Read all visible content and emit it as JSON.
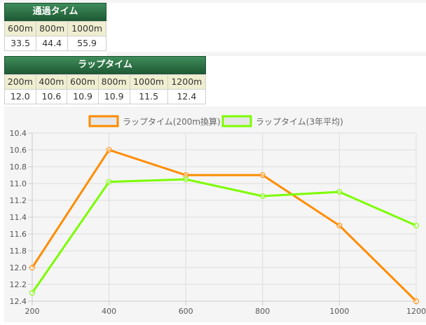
{
  "passing_table": {
    "title": "通過タイム",
    "headers": [
      "600m",
      "800m",
      "1000m"
    ],
    "values": [
      "33.5",
      "44.4",
      "55.9"
    ]
  },
  "lap_table": {
    "title": "ラップタイム",
    "headers": [
      "200m",
      "400m",
      "600m",
      "800m",
      "1000m",
      "1200m"
    ],
    "values": [
      "12.0",
      "10.6",
      "10.9",
      "10.9",
      "11.5",
      "12.4"
    ]
  },
  "colors": {
    "header_green": "#2d7246",
    "orange": "#ff8c00",
    "green": "#7cfc00"
  },
  "chart_data": {
    "type": "line",
    "x": [
      200,
      400,
      600,
      800,
      1000,
      1200
    ],
    "series": [
      {
        "name": "ラップタイム(200m換算)",
        "color": "#ff8c00",
        "values": [
          12.0,
          10.6,
          10.9,
          10.9,
          11.5,
          12.4
        ]
      },
      {
        "name": "ラップタイム(3年平均)",
        "color": "#7cfc00",
        "values": [
          12.3,
          10.98,
          10.95,
          11.15,
          11.1,
          11.5
        ]
      }
    ],
    "y_ticks": [
      "10.4",
      "10.6",
      "10.8",
      "11.0",
      "11.2",
      "11.4",
      "11.6",
      "11.8",
      "12.0",
      "12.2",
      "12.4"
    ],
    "x_ticks": [
      "200",
      "400",
      "600",
      "800",
      "1000",
      "1200"
    ],
    "ylim": [
      10.4,
      12.4
    ],
    "y_reversed": true,
    "xlim": [
      200,
      1200
    ],
    "grid": true,
    "legend_position": "top"
  }
}
